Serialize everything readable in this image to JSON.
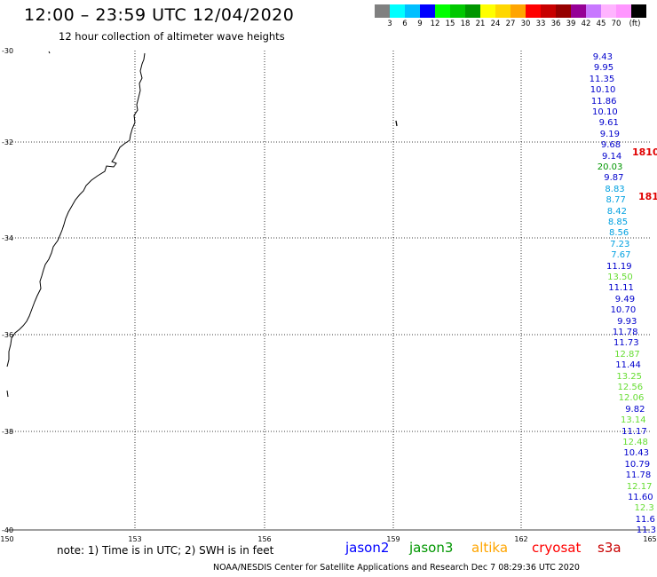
{
  "header": {
    "title": "12:00 – 23:59 UTC 12/04/2020",
    "subtitle": "12 hour collection of altimeter wave heights"
  },
  "colorbar": {
    "colors": [
      "#808080",
      "#00ffff",
      "#00bfff",
      "#0000ff",
      "#00ff00",
      "#00c800",
      "#009600",
      "#ffff00",
      "#ffd700",
      "#ffa500",
      "#ff0000",
      "#c80000",
      "#960000",
      "#960096",
      "#c878ff",
      "#ffb4ff",
      "#ff96ff",
      "#000000"
    ],
    "labels": [
      "3",
      "6",
      "9",
      "12",
      "15",
      "18",
      "21",
      "24",
      "27",
      "30",
      "33",
      "36",
      "39",
      "42",
      "45",
      "70",
      "(ft)"
    ]
  },
  "axes": {
    "lat_labels": [
      "-30",
      "-32",
      "-34",
      "-36",
      "-38",
      "-40"
    ],
    "lon_labels": [
      "150",
      "153",
      "156",
      "159",
      "162",
      "165"
    ]
  },
  "measurements": [
    {
      "value": "9.43",
      "color": "#0000cc"
    },
    {
      "value": "9.95",
      "color": "#0000cc"
    },
    {
      "value": "11.35",
      "color": "#0000cc"
    },
    {
      "value": "10.10",
      "color": "#0000cc"
    },
    {
      "value": "11.86",
      "color": "#0000cc"
    },
    {
      "value": "10.10",
      "color": "#0000cc"
    },
    {
      "value": "9.61",
      "color": "#0000cc"
    },
    {
      "value": "9.19",
      "color": "#0000cc"
    },
    {
      "value": "9.68",
      "color": "#0000cc"
    },
    {
      "value": "9.14",
      "color": "#0000cc"
    },
    {
      "value": "20.03",
      "color": "#009600"
    },
    {
      "value": "9.87",
      "color": "#0000cc"
    },
    {
      "value": "8.83",
      "color": "#00a0e0"
    },
    {
      "value": "8.77",
      "color": "#00a0e0"
    },
    {
      "value": "8.42",
      "color": "#00a0e0"
    },
    {
      "value": "8.85",
      "color": "#00a0e0"
    },
    {
      "value": "8.56",
      "color": "#00a0e0"
    },
    {
      "value": "7.23",
      "color": "#00a0e0"
    },
    {
      "value": "7.67",
      "color": "#00a0e0"
    },
    {
      "value": "11.19",
      "color": "#0000cc"
    },
    {
      "value": "13.50",
      "color": "#66dd33"
    },
    {
      "value": "11.11",
      "color": "#0000cc"
    },
    {
      "value": "9.49",
      "color": "#0000cc"
    },
    {
      "value": "10.70",
      "color": "#0000cc"
    },
    {
      "value": "9.93",
      "color": "#0000cc"
    },
    {
      "value": "11.78",
      "color": "#0000cc"
    },
    {
      "value": "11.73",
      "color": "#0000cc"
    },
    {
      "value": "12.87",
      "color": "#66dd33"
    },
    {
      "value": "11.44",
      "color": "#0000cc"
    },
    {
      "value": "13.25",
      "color": "#66dd33"
    },
    {
      "value": "12.56",
      "color": "#66dd33"
    },
    {
      "value": "12.06",
      "color": "#66dd33"
    },
    {
      "value": "9.82",
      "color": "#0000cc"
    },
    {
      "value": "13.14",
      "color": "#66dd33"
    },
    {
      "value": "11.17",
      "color": "#0000cc"
    },
    {
      "value": "12.48",
      "color": "#66dd33"
    },
    {
      "value": "10.43",
      "color": "#0000cc"
    },
    {
      "value": "10.79",
      "color": "#0000cc"
    },
    {
      "value": "11.78",
      "color": "#0000cc"
    },
    {
      "value": "12.17",
      "color": "#66dd33"
    },
    {
      "value": "11.60",
      "color": "#0000cc"
    },
    {
      "value": "12.3",
      "color": "#66dd33"
    },
    {
      "value": "11.6",
      "color": "#0000cc"
    },
    {
      "value": "11.3",
      "color": "#0000cc"
    }
  ],
  "edge_labels": [
    "1810",
    "181"
  ],
  "footer": {
    "note": "note: 1) Time is in UTC; 2) SWH is in feet",
    "satellites": [
      {
        "name": "jason2",
        "color": "#0000ff"
      },
      {
        "name": "jason3",
        "color": "#009600"
      },
      {
        "name": "altika",
        "color": "#ffa500"
      },
      {
        "name": "cryosat",
        "color": "#ff0000"
      },
      {
        "name": "s3a",
        "color": "#c80000"
      }
    ],
    "credit": "NOAA/NESDIS Center for Satellite Applications and Research    Dec  7 08:29:36 UTC 2020"
  }
}
